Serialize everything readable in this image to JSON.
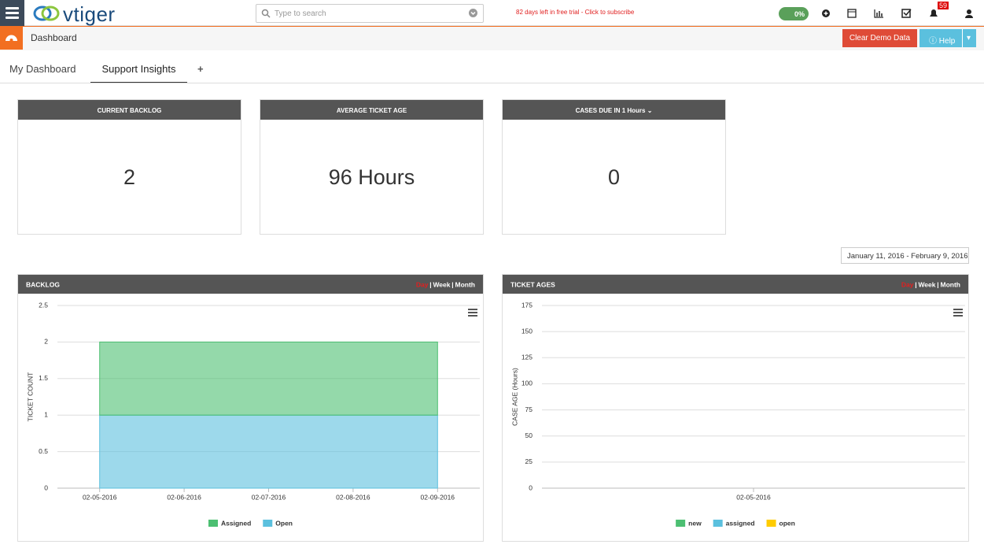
{
  "header": {
    "logo": "vtiger",
    "search_placeholder": "Type to search",
    "trial_notice": "82 days left in free trial - Click to subscribe",
    "progress": "0%",
    "notification_count": "59"
  },
  "toolbar": {
    "title": "Dashboard",
    "buttons": [
      "Clear Demo Data",
      "Help"
    ]
  },
  "tabs": [
    "My Dashboard",
    "Support Insights",
    "+"
  ],
  "widgets": [
    {
      "title": "CURRENT BACKLOG",
      "value": 2
    },
    {
      "title": "AVERAGE TICKET AGE",
      "value": "96 Hours"
    },
    {
      "title": "CASES DUE IN 1 Hours",
      "value": 0
    }
  ],
  "date_range": "January 11, 2016 - February 9, 2016",
  "charts": [
    {
      "type": "area",
      "title": "BACKLOG",
      "periods": [
        "Day",
        "Week",
        "Month"
      ],
      "ylabel": "TICKET COUNT",
      "categories": [
        "02-05-2016",
        "02-06-2016",
        "02-07-2016",
        "02-08-2016",
        "02-09-2016"
      ],
      "series": [
        {
          "name": "Assigned",
          "color": "#4cbf72",
          "values": [
            1,
            1,
            1,
            1,
            1
          ]
        },
        {
          "name": "Open",
          "color": "#5bc0de",
          "values": [
            1,
            1,
            1,
            1,
            1
          ]
        }
      ],
      "stacked": true,
      "ylim": [
        0,
        2.5
      ],
      "yticks": [
        0,
        0.5,
        1,
        1.5,
        2,
        2.5
      ],
      "grid": true
    },
    {
      "type": "area",
      "title": "TICKET AGES",
      "periods": [
        "Day",
        "Week",
        "Month"
      ],
      "ylabel": "CASE AGE (Hours)",
      "categories": [
        "02-05-2016"
      ],
      "series": [
        {
          "name": "new",
          "color": "#4cbf72",
          "values": [
            0
          ]
        },
        {
          "name": "assigned",
          "color": "#5bc0de",
          "values": [
            0
          ]
        },
        {
          "name": "open",
          "color": "#ffcc00",
          "values": [
            0
          ]
        }
      ],
      "stacked": true,
      "ylim": [
        0,
        175
      ],
      "yticks": [
        0,
        25,
        50,
        75,
        100,
        125,
        150,
        175
      ],
      "grid": true
    }
  ]
}
